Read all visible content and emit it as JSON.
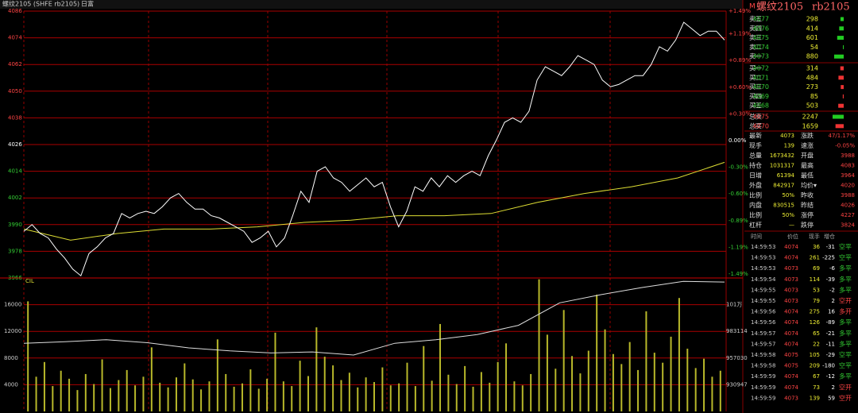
{
  "header": {
    "symbol": "螺纹2105 (SHFE rb2105)",
    "period": "日富"
  },
  "price_chart": {
    "ylim": [
      3966,
      4086
    ],
    "yticks": [
      4086,
      4074,
      4062,
      4050,
      4038,
      4026,
      4014,
      4002,
      3990,
      3978,
      3966
    ],
    "pct_labels": [
      "+1.49%",
      "+1.19%",
      "+0.89%",
      "+0.60%",
      "+0.30%",
      "0.00%",
      "-0.30%",
      "-0.60%",
      "-0.89%",
      "-1.19%",
      "-1.49%"
    ],
    "price": [
      3987,
      3990,
      3986,
      3984,
      3979,
      3975,
      3970,
      3967,
      3977,
      3980,
      3984,
      3986,
      3995,
      3993,
      3995,
      3996,
      3995,
      3998,
      4002,
      4004,
      4000,
      3997,
      3997,
      3994,
      3993,
      3991,
      3989,
      3987,
      3982,
      3984,
      3987,
      3980,
      3984,
      3994,
      4005,
      4000,
      4014,
      4016,
      4011,
      4009,
      4005,
      4008,
      4011,
      4007,
      4009,
      3998,
      3989,
      3996,
      4007,
      4005,
      4011,
      4007,
      4012,
      4009,
      4012,
      4014,
      4012,
      4021,
      4028,
      4036,
      4038,
      4036,
      4041,
      4055,
      4061,
      4059,
      4057,
      4061,
      4066,
      4064,
      4062,
      4055,
      4052,
      4053,
      4055,
      4057,
      4057,
      4062,
      4070,
      4068,
      4073,
      4081,
      4078,
      4075,
      4077,
      4077,
      4073
    ],
    "avg": [
      3988,
      3983,
      3986,
      3988,
      3988,
      3989,
      3991,
      3992,
      3994,
      3994,
      3995,
      4000,
      4004,
      4007,
      4011,
      4018
    ]
  },
  "volume_chart": {
    "label": "CIL",
    "ylim": [
      0,
      20000
    ],
    "yticks": [
      4000,
      8000,
      12000,
      16000
    ],
    "volume": [
      16500,
      5200,
      7400,
      3800,
      6100,
      4900,
      3200,
      5600,
      4100,
      7800,
      3500,
      4700,
      6200,
      3900,
      5200,
      9600,
      4300,
      3600,
      5100,
      7200,
      4800,
      3300,
      4500,
      10800,
      5600,
      3700,
      4200,
      6300,
      3400,
      4900,
      11800,
      4500,
      3800,
      7600,
      5300,
      12600,
      8200,
      6900,
      4700,
      5800,
      3600,
      5100,
      4400,
      6600,
      3900,
      4200,
      7300,
      3800,
      9800,
      4600,
      13100,
      5500,
      4100,
      6800,
      3700,
      5900,
      4300,
      7400,
      10200,
      4500,
      3900,
      5600,
      19800,
      11500,
      6400,
      15200,
      8300,
      5700,
      9100,
      17500,
      12300,
      8600,
      7100,
      10400,
      6200,
      15000,
      8800,
      7300,
      11200,
      17000,
      9400,
      6500,
      7900,
      5200,
      6100
    ],
    "oi_ylim": [
      904864,
      1035280
    ],
    "oi_ticks": [
      930947,
      957030,
      983114,
      {
        "value": 1009197,
        "label": "101万"
      }
    ],
    "oi": [
      971500,
      973000,
      975000,
      972000,
      967000,
      964000,
      962000,
      963000,
      960000,
      971500,
      975000,
      980000,
      989000,
      1011000,
      1019000,
      1026000,
      1032000,
      1031317
    ]
  },
  "quote": {
    "marker": "M",
    "name": "螺纹2105",
    "code": "rb2105"
  },
  "order_book": {
    "asks": [
      {
        "label": "卖五",
        "price": 4077,
        "qty": 298
      },
      {
        "label": "卖四",
        "price": 4076,
        "qty": 414
      },
      {
        "label": "卖三",
        "price": 4075,
        "qty": 601
      },
      {
        "label": "卖二",
        "price": 4074,
        "qty": 54
      },
      {
        "label": "卖一",
        "price": 4073,
        "qty": 880
      }
    ],
    "bids": [
      {
        "label": "买一",
        "price": 4072,
        "qty": 314
      },
      {
        "label": "买二",
        "price": 4071,
        "qty": 484
      },
      {
        "label": "买三",
        "price": 4070,
        "qty": 273
      },
      {
        "label": "买四",
        "price": 4069,
        "qty": 85
      },
      {
        "label": "买五",
        "price": 4068,
        "qty": 503
      }
    ],
    "totals": [
      {
        "label": "总卖",
        "price": 4075,
        "qty": 2247
      },
      {
        "label": "总买",
        "price": 4070,
        "qty": 1659
      }
    ]
  },
  "stats": [
    [
      "最新",
      4073,
      "涨跌",
      "47/1.17%"
    ],
    [
      "现手",
      139,
      "速涨",
      "-0.05%"
    ],
    [
      "总量",
      1673432,
      "开盘",
      3988
    ],
    [
      "持仓",
      1031317,
      "最高",
      4083
    ],
    [
      "日增",
      61394,
      "最低",
      3964
    ],
    [
      "外盘",
      842917,
      "均价▾",
      4020
    ],
    [
      "比例",
      "50%",
      "昨收",
      3988
    ],
    [
      "内盘",
      830515,
      "昨结",
      4026
    ],
    [
      "比例",
      "50%",
      "涨停",
      4227
    ],
    [
      "杠杆",
      "—",
      "跌停",
      3824
    ]
  ],
  "ticks": {
    "columns": [
      "时间",
      "价位",
      "现手",
      "增仓"
    ],
    "rows": [
      [
        "14:59:53",
        4074,
        36,
        -31,
        "空平"
      ],
      [
        "14:59:53",
        4074,
        261,
        -225,
        "空平"
      ],
      [
        "14:59:53",
        4073,
        69,
        -6,
        "多平"
      ],
      [
        "14:59:54",
        4073,
        114,
        -39,
        "多平"
      ],
      [
        "14:59:55",
        4073,
        53,
        -2,
        "多平"
      ],
      [
        "14:59:55",
        4073,
        79,
        2,
        "空开"
      ],
      [
        "14:59:56",
        4074,
        275,
        16,
        "多开"
      ],
      [
        "14:59:56",
        4074,
        126,
        -89,
        "多平"
      ],
      [
        "14:59:57",
        4074,
        65,
        -21,
        "多平"
      ],
      [
        "14:59:57",
        4074,
        22,
        -11,
        "多平"
      ],
      [
        "14:59:58",
        4075,
        105,
        -29,
        "空平"
      ],
      [
        "14:59:58",
        4075,
        209,
        -180,
        "空平"
      ],
      [
        "14:59:59",
        4074,
        67,
        -12,
        "多平"
      ],
      [
        "14:59:59",
        4074,
        73,
        2,
        "空开"
      ],
      [
        "14:59:59",
        4073,
        139,
        59,
        "空开"
      ]
    ]
  }
}
